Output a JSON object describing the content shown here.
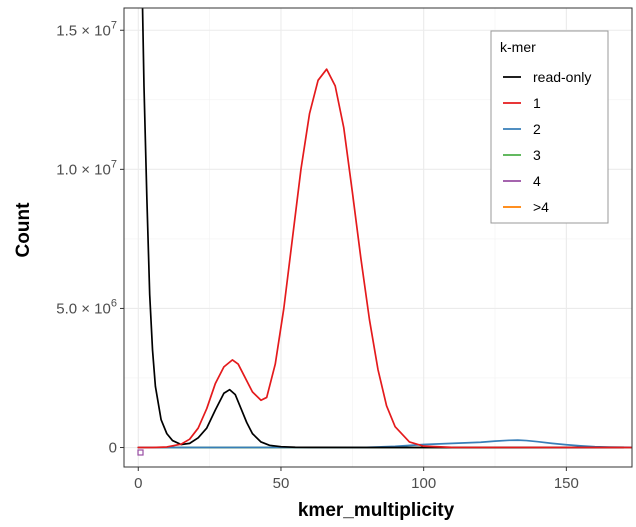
{
  "chart_data": {
    "type": "line",
    "xlabel": "kmer_multiplicity",
    "ylabel": "Count",
    "xlim": [
      -5,
      173
    ],
    "ylim": [
      -700000,
      15800000
    ],
    "x_ticks": [
      0,
      50,
      100,
      150
    ],
    "y_ticks": [
      {
        "value": 0,
        "base": "0",
        "exp": ""
      },
      {
        "value": 5000000,
        "base": "5.0 × 10",
        "exp": "6"
      },
      {
        "value": 10000000,
        "base": "1.0 × 10",
        "exp": "7"
      },
      {
        "value": 15000000,
        "base": "1.5 × 10",
        "exp": "7"
      }
    ],
    "grid": true,
    "legend": {
      "title": "k-mer",
      "position": "top-right"
    },
    "series": [
      {
        "name": "read-only",
        "color": "#000000",
        "x": [
          1.5,
          2,
          3,
          4,
          5,
          6,
          8,
          10,
          12,
          15,
          18,
          21,
          24,
          27,
          30,
          32,
          34,
          36,
          38,
          40,
          43,
          46,
          50,
          55,
          60,
          100,
          170
        ],
        "y": [
          15800000,
          13000000,
          9000000,
          5500000,
          3500000,
          2200000,
          1000000,
          500000,
          250000,
          110000,
          150000,
          350000,
          700000,
          1350000,
          1950000,
          2080000,
          1900000,
          1400000,
          900000,
          500000,
          200000,
          80000,
          30000,
          10000,
          5000,
          0,
          0
        ]
      },
      {
        "name": "1",
        "color": "#e41a1c",
        "x": [
          0,
          5,
          10,
          15,
          18,
          21,
          24,
          27,
          30,
          33,
          35,
          37,
          40,
          43,
          45,
          48,
          51,
          54,
          57,
          60,
          63,
          66,
          69,
          72,
          75,
          78,
          81,
          84,
          87,
          90,
          95,
          100,
          110,
          173
        ],
        "y": [
          0,
          0,
          20000,
          120000,
          300000,
          700000,
          1400000,
          2300000,
          2900000,
          3150000,
          3000000,
          2600000,
          2000000,
          1700000,
          1800000,
          3000000,
          5000000,
          7500000,
          10000000,
          12000000,
          13200000,
          13600000,
          13000000,
          11500000,
          9200000,
          6800000,
          4600000,
          2800000,
          1500000,
          750000,
          200000,
          50000,
          5000,
          0
        ]
      },
      {
        "name": "2",
        "color": "#377eb8",
        "x": [
          0,
          80,
          90,
          100,
          110,
          120,
          125,
          130,
          133,
          136,
          140,
          145,
          150,
          155,
          160,
          165,
          173
        ],
        "y": [
          0,
          5000,
          40000,
          110000,
          150000,
          190000,
          230000,
          260000,
          265000,
          250000,
          210000,
          150000,
          100000,
          60000,
          30000,
          15000,
          5000
        ]
      },
      {
        "name": "3",
        "color": "#4daf4a",
        "x": [
          0,
          173
        ],
        "y": [
          0,
          0
        ]
      },
      {
        "name": "4",
        "color": "#984ea3",
        "x": [
          0,
          173
        ],
        "y": [
          0,
          0
        ]
      },
      {
        "name": ">4",
        "color": "#ff7f00",
        "x": [
          0,
          173
        ],
        "y": [
          0,
          0
        ]
      }
    ]
  }
}
